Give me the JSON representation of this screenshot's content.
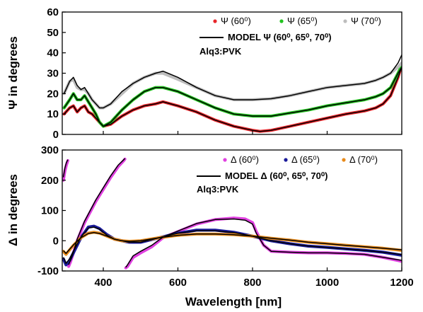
{
  "chart_data": [
    {
      "type": "line",
      "panel": "top",
      "ylabel": "Ψ in degrees",
      "xlim": [
        290,
        1200
      ],
      "ylim": [
        0,
        60
      ],
      "x_ticks": [
        400,
        600,
        800,
        1000,
        1200
      ],
      "y_ticks": [
        0,
        10,
        20,
        30,
        40,
        50,
        60
      ],
      "sample_label": "Alq3:PVK",
      "legend": {
        "placement": "top-right",
        "data_entries": [
          "Ψ (60⁰)",
          "Ψ (65⁰)",
          "Ψ (70⁰)"
        ],
        "model_entry": "MODEL Ψ (60⁰, 65⁰, 70⁰)"
      },
      "series": [
        {
          "name": "Ψ (60⁰)",
          "kind": "data",
          "color": "#e8252a",
          "x": [
            295,
            310,
            320,
            330,
            340,
            350,
            360,
            370,
            380,
            390,
            400,
            420,
            450,
            480,
            510,
            540,
            560,
            600,
            650,
            700,
            750,
            800,
            820,
            850,
            900,
            950,
            1000,
            1050,
            1100,
            1130,
            1150,
            1170,
            1190,
            1200
          ],
          "y": [
            10,
            13,
            14,
            11,
            13,
            14,
            11,
            10,
            8,
            6,
            4,
            5,
            9,
            12,
            14,
            15,
            16,
            14,
            11,
            7,
            4,
            2,
            1.5,
            2,
            4,
            6,
            8,
            10,
            11.5,
            13,
            15,
            19,
            28,
            34
          ]
        },
        {
          "name": "Ψ (65⁰)",
          "kind": "data",
          "color": "#22c31f",
          "x": [
            295,
            310,
            320,
            330,
            340,
            350,
            360,
            370,
            380,
            390,
            400,
            420,
            450,
            480,
            510,
            540,
            560,
            600,
            650,
            700,
            750,
            800,
            850,
            900,
            950,
            1000,
            1050,
            1100,
            1130,
            1150,
            1170,
            1190,
            1200
          ],
          "y": [
            13,
            17,
            20,
            17,
            17,
            19,
            16,
            13,
            10,
            6,
            4,
            6,
            12,
            17,
            21,
            23,
            23,
            21,
            17,
            13,
            10,
            9,
            9,
            10.5,
            12,
            14,
            15.5,
            17,
            18.5,
            20,
            23,
            30,
            34
          ]
        },
        {
          "name": "Ψ (70⁰)",
          "kind": "data",
          "color": "#bdbdbd",
          "x": [
            295,
            310,
            320,
            330,
            340,
            350,
            360,
            370,
            380,
            390,
            400,
            420,
            450,
            480,
            510,
            540,
            560,
            600,
            650,
            700,
            750,
            800,
            850,
            900,
            950,
            1000,
            1050,
            1100,
            1130,
            1150,
            1170,
            1190,
            1200
          ],
          "y": [
            20,
            26,
            27,
            23,
            22,
            22,
            20,
            17,
            15,
            13,
            13,
            15,
            20,
            25,
            28,
            30,
            30,
            27,
            23,
            19,
            17,
            17,
            17.5,
            19,
            21,
            23,
            24,
            25,
            26.5,
            28,
            30,
            33,
            35
          ]
        },
        {
          "name": "MODEL Ψ (60⁰, 65⁰, 70⁰)",
          "kind": "model",
          "color": "#000000",
          "segments": [
            {
              "x": [
                295,
                310,
                320,
                330,
                340,
                350,
                360,
                370,
                380,
                390,
                400,
                420,
                450,
                480,
                510,
                540,
                560,
                600,
                650,
                700,
                750,
                800,
                820,
                850,
                900,
                950,
                1000,
                1050,
                1100,
                1130,
                1150,
                1170,
                1190,
                1200
              ],
              "y": [
                10,
                13,
                14,
                11,
                13,
                14,
                11,
                10,
                8,
                6,
                4,
                5,
                9,
                12,
                14,
                15,
                16,
                14,
                11,
                7,
                4,
                2,
                1.5,
                2,
                4,
                6,
                8,
                10,
                11.5,
                13,
                15,
                19,
                28,
                33
              ]
            },
            {
              "x": [
                295,
                310,
                320,
                330,
                340,
                350,
                360,
                370,
                380,
                390,
                400,
                420,
                450,
                480,
                510,
                540,
                560,
                600,
                650,
                700,
                750,
                800,
                850,
                900,
                950,
                1000,
                1050,
                1100,
                1130,
                1150,
                1170,
                1190,
                1200
              ],
              "y": [
                13,
                17,
                20,
                17,
                17,
                19,
                16,
                13,
                10,
                6,
                4,
                6,
                12,
                17,
                21,
                23,
                23,
                21,
                17,
                13,
                10,
                9,
                9,
                10.5,
                12,
                14,
                15.5,
                17,
                18.5,
                20,
                23,
                30,
                33
              ]
            },
            {
              "x": [
                295,
                310,
                320,
                330,
                340,
                350,
                360,
                370,
                380,
                390,
                400,
                420,
                450,
                480,
                510,
                540,
                560,
                600,
                650,
                700,
                750,
                800,
                850,
                900,
                950,
                1000,
                1050,
                1100,
                1130,
                1150,
                1170,
                1190,
                1200
              ],
              "y": [
                20,
                26,
                28,
                24,
                22,
                23,
                20,
                17,
                15,
                13,
                13,
                15,
                21,
                25,
                28,
                30,
                31,
                28,
                23,
                19,
                17,
                17,
                17.5,
                19,
                21,
                23,
                24,
                25,
                26.5,
                28,
                30,
                35,
                39
              ]
            }
          ]
        }
      ]
    },
    {
      "type": "line",
      "panel": "bottom",
      "xlabel": "Wavelength [nm]",
      "ylabel": "Δ in degrees",
      "xlim": [
        290,
        1200
      ],
      "ylim": [
        -100,
        300
      ],
      "x_ticks": [
        400,
        600,
        800,
        1000,
        1200
      ],
      "y_ticks": [
        -100,
        0,
        100,
        200,
        300
      ],
      "sample_label": "Alq3:PVK",
      "legend": {
        "placement": "top-right",
        "data_entries": [
          "Δ (60⁰)",
          "Δ (65⁰)",
          "Δ (70⁰)"
        ],
        "model_entry": "MODEL Δ (60⁰, 65⁰, 70⁰)"
      },
      "series": [
        {
          "name": "Δ (60⁰)",
          "kind": "data",
          "color": "#e040e0",
          "segments": [
            {
              "x": [
                293,
                297,
                301,
                305
              ],
              "y": [
                200,
                230,
                250,
                265
              ]
            },
            {
              "x": [
                307,
                312,
                320,
                330,
                350,
                380,
                400,
                420,
                440,
                455,
                458
              ],
              "y": [
                -85,
                -70,
                -40,
                0,
                60,
                130,
                170,
                210,
                245,
                265,
                270
              ]
            },
            {
              "x": [
                460,
                465,
                480,
                500,
                530,
                560,
                600,
                650,
                700,
                750,
                780,
                800,
                810,
                830,
                850,
                900,
                950,
                1000,
                1050,
                1100,
                1150,
                1200
              ],
              "y": [
                -90,
                -85,
                -55,
                -40,
                -20,
                10,
                30,
                55,
                70,
                75,
                72,
                60,
                30,
                -15,
                -35,
                -38,
                -40,
                -40,
                -42,
                -45,
                -55,
                -68
              ]
            }
          ]
        },
        {
          "name": "Δ (65⁰)",
          "kind": "data",
          "color": "#1a1a9a",
          "x": [
            293,
            300,
            310,
            320,
            340,
            360,
            375,
            390,
            410,
            430,
            450,
            470,
            500,
            550,
            600,
            650,
            700,
            750,
            800,
            850,
            900,
            950,
            1000,
            1050,
            1100,
            1150,
            1200
          ],
          "y": [
            -60,
            -80,
            -65,
            -40,
            10,
            45,
            48,
            40,
            20,
            5,
            0,
            -5,
            -5,
            10,
            25,
            35,
            35,
            28,
            15,
            0,
            -10,
            -18,
            -22,
            -27,
            -32,
            -38,
            -48
          ]
        },
        {
          "name": "Δ (70⁰)",
          "kind": "data",
          "color": "#e88a1a",
          "x": [
            293,
            300,
            310,
            320,
            340,
            360,
            375,
            390,
            410,
            430,
            450,
            470,
            500,
            550,
            600,
            650,
            700,
            750,
            800,
            850,
            900,
            950,
            1000,
            1050,
            1100,
            1150,
            1200
          ],
          "y": [
            -35,
            -45,
            -30,
            -15,
            10,
            25,
            28,
            25,
            15,
            5,
            0,
            -2,
            0,
            10,
            18,
            22,
            22,
            20,
            15,
            8,
            2,
            -5,
            -10,
            -15,
            -20,
            -25,
            -32
          ]
        },
        {
          "name": "MODEL Δ (60⁰, 65⁰, 70⁰)",
          "kind": "model",
          "color": "#000000",
          "segments": [
            {
              "x": [
                293,
                297,
                301,
                305
              ],
              "y": [
                210,
                240,
                258,
                268
              ]
            },
            {
              "x": [
                307,
                312,
                320,
                330,
                350,
                380,
                400,
                420,
                440,
                455,
                458
              ],
              "y": [
                -80,
                -65,
                -38,
                5,
                65,
                135,
                175,
                215,
                250,
                268,
                272
              ]
            },
            {
              "x": [
                460,
                465,
                480,
                500,
                530,
                560,
                600,
                650,
                700,
                750,
                780,
                800,
                810,
                830,
                850,
                900,
                950,
                1000,
                1050,
                1100,
                1150,
                1200
              ],
              "y": [
                -88,
                -80,
                -50,
                -35,
                -15,
                12,
                32,
                57,
                70,
                72,
                68,
                55,
                25,
                -15,
                -35,
                -38,
                -40,
                -40,
                -42,
                -45,
                -55,
                -65
              ]
            },
            {
              "x": [
                293,
                300,
                310,
                320,
                340,
                360,
                375,
                390,
                410,
                430,
                450,
                470,
                500,
                550,
                600,
                650,
                700,
                750,
                800,
                850,
                900,
                950,
                1000,
                1050,
                1100,
                1150,
                1200
              ],
              "y": [
                -55,
                -75,
                -60,
                -35,
                12,
                42,
                45,
                38,
                18,
                5,
                0,
                -5,
                -5,
                10,
                25,
                33,
                33,
                27,
                15,
                0,
                -10,
                -18,
                -22,
                -27,
                -32,
                -38,
                -46
              ]
            },
            {
              "x": [
                293,
                300,
                310,
                320,
                340,
                360,
                375,
                390,
                410,
                430,
                450,
                470,
                500,
                550,
                600,
                650,
                700,
                750,
                800,
                850,
                900,
                950,
                1000,
                1050,
                1100,
                1150,
                1200
              ],
              "y": [
                -33,
                -42,
                -28,
                -14,
                10,
                24,
                27,
                24,
                15,
                5,
                0,
                -2,
                0,
                10,
                18,
                22,
                22,
                20,
                15,
                8,
                2,
                -5,
                -10,
                -15,
                -20,
                -25,
                -30
              ]
            }
          ]
        }
      ]
    }
  ]
}
